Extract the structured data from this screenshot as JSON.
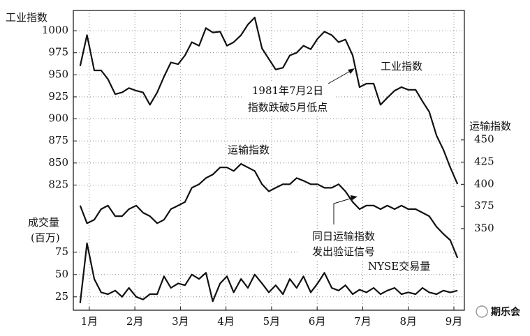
{
  "chart_data": {
    "type": "line",
    "y_label": "工业指数",
    "y2_label": "运输指数",
    "y3_label": [
      "成交量",
      "(百万)"
    ],
    "annotations": [
      [
        "1981年7月2日",
        "指数跌破5月低点"
      ],
      [
        "同日运输指数",
        "发出验证信号"
      ]
    ],
    "watermark": "期乐会",
    "xlim": [
      0.65,
      9.23
    ],
    "xticks": [
      {
        "value": 1,
        "label": "1月"
      },
      {
        "value": 2,
        "label": "2月"
      },
      {
        "value": 3,
        "label": "3月"
      },
      {
        "value": 4,
        "label": "4月"
      },
      {
        "value": 5,
        "label": "5月"
      },
      {
        "value": 6,
        "label": "6月"
      },
      {
        "value": 7,
        "label": "7月"
      },
      {
        "value": 8,
        "label": "8月"
      },
      {
        "value": 9,
        "label": "9月"
      }
    ],
    "ylim": [
      683,
      1023
    ],
    "yticks": [
      825,
      850,
      875,
      900,
      925,
      950,
      975,
      1000
    ],
    "y2lim": [
      258,
      596
    ],
    "y2ticks": [
      350,
      375,
      400,
      425,
      450
    ],
    "y3lim": [
      10,
      346
    ],
    "y3ticks": [
      25,
      50,
      75
    ],
    "grid": true,
    "x": [
      0.8,
      0.95,
      1.11,
      1.26,
      1.41,
      1.57,
      1.72,
      1.87,
      2.03,
      2.18,
      2.33,
      2.49,
      2.64,
      2.79,
      2.95,
      3.1,
      3.25,
      3.41,
      3.56,
      3.71,
      3.87,
      4.02,
      4.17,
      4.33,
      4.48,
      4.63,
      4.79,
      4.94,
      5.09,
      5.25,
      5.4,
      5.55,
      5.7,
      5.86,
      6.01,
      6.16,
      6.32,
      6.47,
      6.62,
      6.78,
      6.93,
      7.08,
      7.24,
      7.39,
      7.54,
      7.7,
      7.85,
      8.0,
      8.16,
      8.31,
      8.46,
      8.62,
      8.77,
      8.92,
      9.08
    ],
    "series": [
      {
        "name": "工业指数",
        "color": "#111111",
        "axis": "y",
        "values": [
          960,
          995,
          955,
          955,
          945,
          928,
          930,
          935,
          932,
          930,
          916,
          930,
          948,
          964,
          962,
          972,
          987,
          983,
          1003,
          998,
          999,
          983,
          987,
          995,
          1007,
          1015,
          980,
          968,
          956,
          958,
          972,
          975,
          983,
          979,
          991,
          999,
          995,
          987,
          990,
          972,
          936,
          940,
          940,
          916,
          924,
          932,
          936,
          933,
          933,
          920,
          908,
          881,
          865,
          845,
          826
        ]
      },
      {
        "name": "运输指数",
        "color": "#111111",
        "axis": "y2",
        "values": [
          376,
          356,
          360,
          372,
          376,
          364,
          364,
          372,
          376,
          368,
          364,
          356,
          360,
          372,
          376,
          380,
          396,
          400,
          407,
          411,
          419,
          419,
          415,
          423,
          419,
          415,
          400,
          392,
          396,
          400,
          400,
          407,
          404,
          400,
          400,
          396,
          396,
          400,
          392,
          380,
          372,
          376,
          376,
          372,
          376,
          372,
          376,
          372,
          372,
          368,
          364,
          352,
          344,
          337,
          317
        ]
      },
      {
        "name": "NYSE交易量",
        "color": "#111111",
        "axis": "y3",
        "values": [
          18,
          85,
          45,
          30,
          28,
          32,
          25,
          35,
          25,
          22,
          28,
          28,
          48,
          35,
          40,
          38,
          50,
          45,
          52,
          20,
          40,
          48,
          30,
          45,
          35,
          50,
          40,
          30,
          38,
          28,
          45,
          35,
          48,
          30,
          40,
          52,
          35,
          32,
          38,
          28,
          33,
          30,
          35,
          28,
          32,
          35,
          28,
          30,
          28,
          35,
          30,
          28,
          32,
          30,
          32
        ]
      }
    ]
  }
}
